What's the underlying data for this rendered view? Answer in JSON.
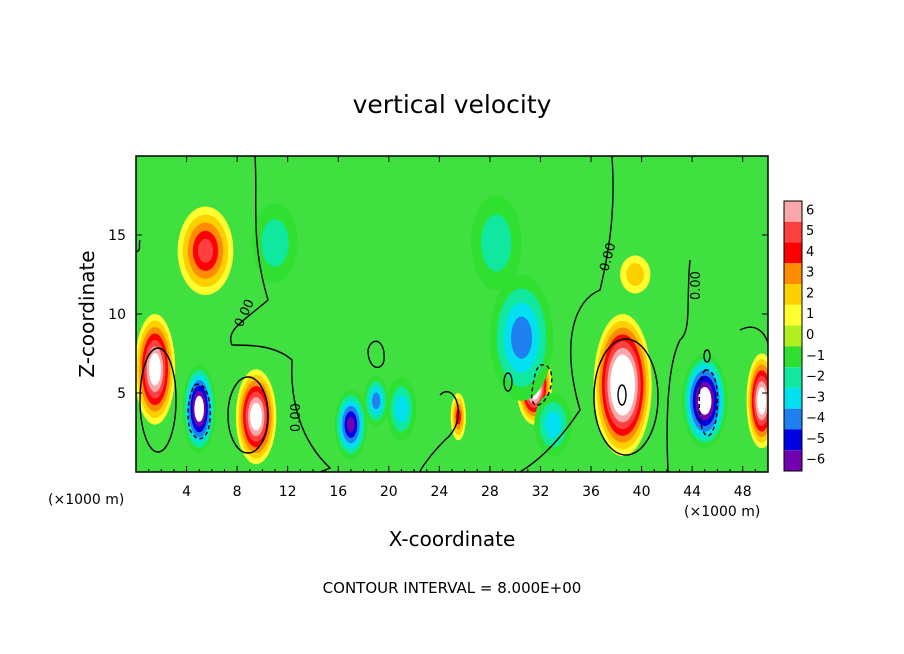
{
  "chart_data": {
    "type": "heatmap",
    "title": "vertical velocity",
    "xlabel": "X-coordinate",
    "ylabel": "Z-coordinate",
    "x_unit": "(×1000 m)",
    "y_unit": "(×1000 m)",
    "xlim": [
      0,
      50
    ],
    "ylim": [
      0,
      20
    ],
    "x_ticks": [
      4,
      8,
      12,
      16,
      20,
      24,
      28,
      32,
      36,
      40,
      44,
      48
    ],
    "y_ticks": [
      5,
      10,
      15
    ],
    "colorbar": {
      "ticks": [
        6,
        5,
        4,
        3,
        2,
        1,
        0,
        -1,
        -2,
        -3,
        -4,
        -5,
        -6
      ],
      "range": [
        -6,
        6
      ],
      "colors": [
        "#f8a8a8",
        "#ff4040",
        "#ff0000",
        "#ff8c00",
        "#ffd000",
        "#ffff30",
        "#b0f020",
        "#30e030",
        "#10e8a0",
        "#00e0f0",
        "#2080f0",
        "#0000e0",
        "#7000b0"
      ]
    },
    "contour_labels": [
      "0.00",
      "0.00",
      "0.00",
      "0.00"
    ],
    "footer": "CONTOUR INTERVAL = 8.000E+00",
    "features": [
      {
        "x": 1.5,
        "z": 6.5,
        "value": 8,
        "sx": 1.6,
        "sz": 3.5
      },
      {
        "x": 5.5,
        "z": 14.0,
        "value": 5,
        "sx": 2.2,
        "sz": 2.8
      },
      {
        "x": 5.0,
        "z": 4.0,
        "value": -8,
        "sx": 1.3,
        "sz": 2.8
      },
      {
        "x": 9.5,
        "z": 3.5,
        "value": 8,
        "sx": 1.6,
        "sz": 3.0
      },
      {
        "x": 11.0,
        "z": 14.5,
        "value": -2,
        "sx": 1.8,
        "sz": 2.5
      },
      {
        "x": 17.0,
        "z": 3.0,
        "value": -6,
        "sx": 1.3,
        "sz": 2.2
      },
      {
        "x": 19.0,
        "z": 4.5,
        "value": -4,
        "sx": 1.0,
        "sz": 1.6
      },
      {
        "x": 21.0,
        "z": 4.0,
        "value": -3,
        "sx": 1.2,
        "sz": 2.0
      },
      {
        "x": 25.5,
        "z": 3.5,
        "value": 4,
        "sx": 0.6,
        "sz": 1.5
      },
      {
        "x": 31.5,
        "z": 5.5,
        "value": 9,
        "sx": 1.4,
        "sz": 2.5
      },
      {
        "x": 30.5,
        "z": 8.5,
        "value": -4,
        "sx": 2.5,
        "sz": 4.0
      },
      {
        "x": 28.5,
        "z": 14.5,
        "value": -2,
        "sx": 2.0,
        "sz": 3.0
      },
      {
        "x": 38.5,
        "z": 5.5,
        "value": 10,
        "sx": 2.3,
        "sz": 4.5
      },
      {
        "x": 39.5,
        "z": 12.5,
        "value": 2,
        "sx": 1.2,
        "sz": 1.2
      },
      {
        "x": 45.0,
        "z": 4.5,
        "value": -8,
        "sx": 1.8,
        "sz": 3.0
      },
      {
        "x": 49.5,
        "z": 4.5,
        "value": 8,
        "sx": 1.2,
        "sz": 3.0
      },
      {
        "x": 33.0,
        "z": 3.0,
        "value": -3,
        "sx": 1.5,
        "sz": 2.0
      }
    ]
  }
}
